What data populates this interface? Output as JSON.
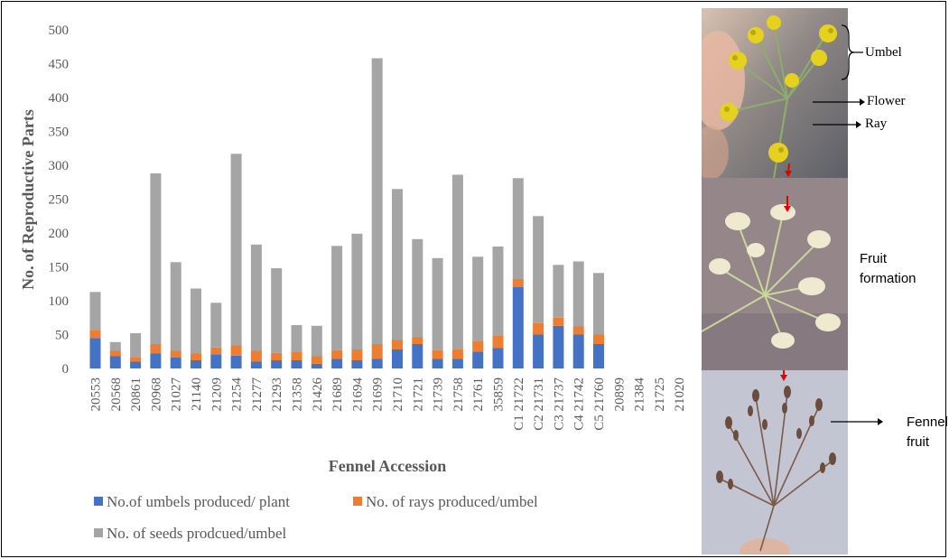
{
  "chart_data": {
    "type": "bar",
    "stacked": true,
    "xlabel": "Fennel Accession",
    "ylabel": "No. of Reproductive Parts",
    "ylim": [
      0,
      500
    ],
    "yticks": [
      0,
      50,
      100,
      150,
      200,
      250,
      300,
      350,
      400,
      450,
      500
    ],
    "grid": false,
    "legend_position": "bottom",
    "categories": [
      "20553",
      "20568",
      "20861",
      "20968",
      "21027",
      "21140",
      "21209",
      "21254",
      "21277",
      "21293",
      "21358",
      "21426",
      "21689",
      "21694",
      "21699",
      "21710",
      "21721",
      "21739",
      "21758",
      "21761",
      "35859",
      "C1 21722",
      "C2 21731",
      "C3 21737",
      "C4 21742",
      "C5 21760",
      "20899",
      "21384",
      "21725",
      "21020"
    ],
    "series": [
      {
        "name": "No.of umbels produced/ plant",
        "color": "#4472C4",
        "values": [
          45,
          18,
          10,
          22,
          16,
          12,
          21,
          19,
          10,
          12,
          12,
          7,
          14,
          12,
          14,
          28,
          36,
          14,
          14,
          25,
          30,
          120,
          50,
          63,
          50,
          36,
          0,
          0,
          0,
          0
        ]
      },
      {
        "name": "No. of rays produced/umbel",
        "color": "#ED7D31",
        "values": [
          12,
          8,
          7,
          14,
          10,
          10,
          10,
          15,
          16,
          11,
          12,
          11,
          13,
          16,
          22,
          14,
          10,
          13,
          15,
          16,
          18,
          12,
          17,
          12,
          12,
          14,
          0,
          0,
          0,
          0
        ]
      },
      {
        "name": "No. of seeds prodcued/umbel",
        "color": "#A5A5A5",
        "values": [
          56,
          13,
          35,
          252,
          131,
          96,
          66,
          283,
          157,
          125,
          40,
          45,
          154,
          171,
          422,
          223,
          145,
          136,
          257,
          124,
          132,
          149,
          158,
          78,
          96,
          91,
          0,
          0,
          0,
          0
        ]
      }
    ]
  },
  "photos": {
    "umbel_label": "Umbel",
    "flower_label": "Flower",
    "ray_label": "Ray",
    "fruit_formation_label": "Fruit formation",
    "fennel_fruit_label": "Fennel fruit"
  }
}
